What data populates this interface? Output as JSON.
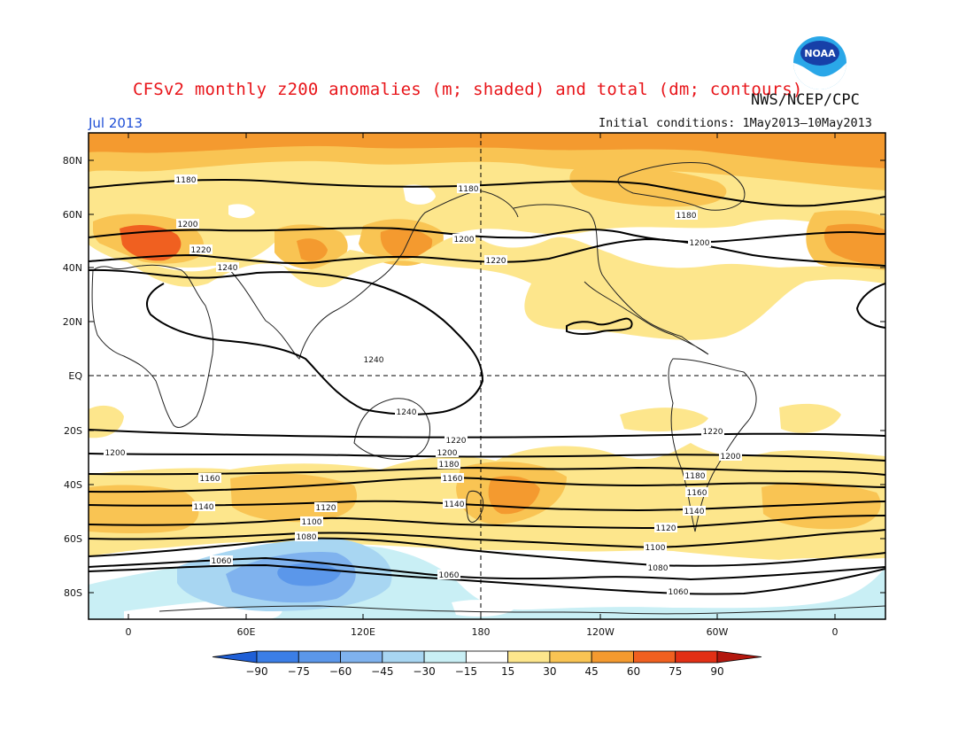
{
  "title": "CFSv2 monthly z200 anomalies (m; shaded) and total (dm; contours)",
  "agency": "NWS/NCEP/CPC",
  "month": "Jul 2013",
  "initial_conditions": "Initial conditions: 1May2013—10May2013",
  "logo": {
    "icon": "noaa-logo-icon",
    "text": "NOAA"
  },
  "map": {
    "y_ticks": [
      "80N",
      "60N",
      "40N",
      "20N",
      "EQ",
      "20S",
      "40S",
      "60S",
      "80S"
    ],
    "x_ticks": [
      "0",
      "60E",
      "120E",
      "180",
      "120W",
      "60W",
      "0"
    ]
  },
  "contour_labels": [
    "1180",
    "1180",
    "1180",
    "1200",
    "1200",
    "1200",
    "1220",
    "1220",
    "1240",
    "1240",
    "1240",
    "1220",
    "1220",
    "1200",
    "1200",
    "1200",
    "1180",
    "1180",
    "1160",
    "1160",
    "1160",
    "1140",
    "1140",
    "1140",
    "1120",
    "1100",
    "1120",
    "1080",
    "1100",
    "1060",
    "1080",
    "1060",
    "1060"
  ],
  "colorbar": {
    "labels": [
      "−90",
      "−75",
      "−60",
      "−45",
      "−30",
      "−15",
      "15",
      "30",
      "45",
      "60",
      "75",
      "90"
    ],
    "colors": [
      "#1f5fd6",
      "#3b7ee6",
      "#5b97ea",
      "#7fb2ee",
      "#a8d6f2",
      "#c9eff5",
      "#ffffff",
      "#fde68c",
      "#f9c453",
      "#f49a2f",
      "#f06020",
      "#e23015",
      "#b3170e"
    ]
  }
}
